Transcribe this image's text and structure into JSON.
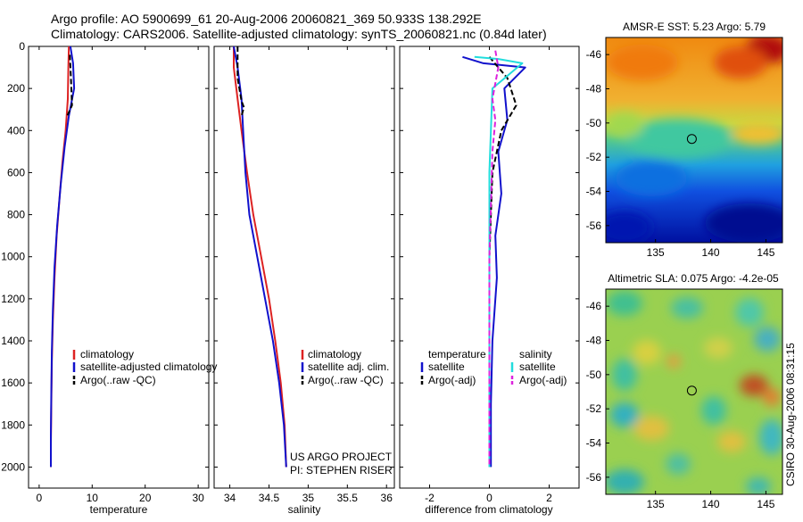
{
  "header": {
    "line1": "Argo profile: AO 5900699_61 20-Aug-2006 20060821_369 50.933S 138.292E",
    "line2": "Climatology: CARS2006. Satellite-adjusted climatology: synTS_20060821.nc (0.84d later)"
  },
  "side_label": "CSIRO 30-Aug-2006 08:31:15",
  "colors": {
    "red": "#dd2222",
    "blue": "#1111cc",
    "black": "#000000",
    "cyan": "#22dddd",
    "magenta": "#dd22dd"
  },
  "chart_data": [
    {
      "type": "line",
      "id": "temperature",
      "xlabel": "temperature",
      "ylabel": "",
      "xlim": [
        -2,
        32
      ],
      "ylim": [
        2100,
        0
      ],
      "xticks": [
        0,
        10,
        20,
        30
      ],
      "yticks": [
        0,
        200,
        400,
        600,
        800,
        1000,
        1200,
        1400,
        1600,
        1800,
        2000
      ],
      "legend": [
        "climatology",
        "satellite-adjusted climatology",
        "Argo(..raw -QC)"
      ],
      "series": [
        {
          "name": "climatology",
          "color": "red",
          "dash": false,
          "x": [
            5.6,
            5.5,
            5.4,
            5.0,
            4.4,
            3.9,
            3.3,
            2.9,
            2.6,
            2.4,
            2.3,
            2.2,
            2.2
          ],
          "y": [
            0,
            100,
            250,
            400,
            550,
            700,
            900,
            1100,
            1300,
            1500,
            1700,
            1900,
            2000
          ]
        },
        {
          "name": "satellite-adjusted climatology",
          "color": "blue",
          "dash": false,
          "x": [
            5.9,
            6.4,
            6.6,
            5.6,
            4.8,
            4.1,
            3.4,
            2.9,
            2.6,
            2.4,
            2.3,
            2.2,
            2.2
          ],
          "y": [
            0,
            80,
            200,
            330,
            480,
            650,
            850,
            1050,
            1250,
            1450,
            1650,
            1850,
            2000
          ]
        },
        {
          "name": "Argo(..raw -QC)",
          "color": "black",
          "dash": true,
          "x": [
            5.8,
            6.0,
            6.2,
            5.3
          ],
          "y": [
            40,
            150,
            280,
            330
          ]
        }
      ]
    },
    {
      "type": "line",
      "id": "salinity",
      "xlabel": "salinity",
      "xlim": [
        33.8,
        36.1
      ],
      "ylim": [
        2100,
        0
      ],
      "xticks": [
        34,
        34.5,
        35,
        35.5,
        36
      ],
      "xticklabels": [
        "34",
        "34.5",
        "35",
        "35.5",
        "36"
      ],
      "legend": [
        "climatology",
        "satellite adj. clim.",
        "Argo(..raw -QC)"
      ],
      "annotations": [
        "US ARGO PROJECT",
        "PI: STEPHEN RISER"
      ],
      "series": [
        {
          "name": "climatology",
          "color": "red",
          "dash": false,
          "x": [
            34.05,
            34.05,
            34.1,
            34.15,
            34.22,
            34.3,
            34.4,
            34.5,
            34.58,
            34.65,
            34.7,
            34.72
          ],
          "y": [
            0,
            100,
            250,
            400,
            600,
            800,
            1000,
            1200,
            1400,
            1600,
            1800,
            2000
          ]
        },
        {
          "name": "satellite adj. clim.",
          "color": "blue",
          "dash": false,
          "x": [
            34.05,
            34.1,
            34.15,
            34.17,
            34.2,
            34.25,
            34.35,
            34.45,
            34.55,
            34.63,
            34.69,
            34.72
          ],
          "y": [
            0,
            100,
            250,
            400,
            600,
            800,
            1000,
            1200,
            1400,
            1600,
            1800,
            2000
          ]
        },
        {
          "name": "Argo(..raw -QC)",
          "color": "black",
          "dash": true,
          "x": [
            34.1,
            34.1,
            34.15,
            34.18,
            34.15
          ],
          "y": [
            0,
            150,
            260,
            290,
            330
          ]
        }
      ]
    },
    {
      "type": "line",
      "id": "difference",
      "xlabel": "difference from climatology",
      "xlim": [
        -3,
        3
      ],
      "ylim": [
        2100,
        0
      ],
      "xticks": [
        -2,
        0,
        2
      ],
      "legend": {
        "temperature": [
          "temperature",
          "satellite",
          "Argo(-adj)"
        ],
        "salinity": [
          "salinity",
          "satellite",
          "Argo(-adj)"
        ]
      },
      "series": [
        {
          "name": "temperature satellite",
          "color": "blue",
          "dash": false,
          "x": [
            -0.9,
            -0.2,
            1.2,
            0.5,
            0.6,
            0.3,
            0.4,
            0.2,
            0.25,
            0.1,
            0.05,
            0.05
          ],
          "y": [
            50,
            80,
            100,
            200,
            350,
            500,
            700,
            900,
            1100,
            1400,
            1700,
            2000
          ]
        },
        {
          "name": "temperature Argo(-adj)",
          "color": "black",
          "dash": true,
          "x": [
            0,
            0.6,
            0.9,
            0.4,
            0.1,
            0,
            0
          ],
          "y": [
            50,
            150,
            280,
            400,
            600,
            1000,
            2000
          ]
        },
        {
          "name": "salinity satellite",
          "color": "cyan",
          "dash": false,
          "x": [
            -0.5,
            0.3,
            1.1,
            0.1,
            0.0,
            0.0,
            0.0
          ],
          "y": [
            50,
            60,
            80,
            200,
            600,
            1200,
            2000
          ]
        },
        {
          "name": "salinity Argo(-adj)",
          "color": "magenta",
          "dash": true,
          "x": [
            0.2,
            0.3,
            0.1,
            0.2,
            0.1,
            0.0,
            0.0
          ],
          "y": [
            20,
            100,
            250,
            350,
            500,
            1000,
            2000
          ]
        }
      ]
    },
    {
      "type": "heatmap",
      "id": "sst_map",
      "title": "AMSR-E SST: 5.23 Argo: 5.79",
      "xlim": [
        130.5,
        146.5
      ],
      "ylim": [
        -57,
        -45
      ],
      "xticks": [
        135,
        140,
        145
      ],
      "yticks": [
        -46,
        -48,
        -50,
        -52,
        -54,
        -56
      ],
      "marker": {
        "lon": 138.292,
        "lat": -50.933
      }
    },
    {
      "type": "heatmap",
      "id": "sla_map",
      "title": "Altimetric SLA: 0.075 Argo: -4.2e-05",
      "xlim": [
        130.5,
        146.5
      ],
      "ylim": [
        -57,
        -45
      ],
      "xticks": [
        135,
        140,
        145
      ],
      "yticks": [
        -46,
        -48,
        -50,
        -52,
        -54,
        -56
      ],
      "marker": {
        "lon": 138.292,
        "lat": -50.933
      }
    }
  ]
}
